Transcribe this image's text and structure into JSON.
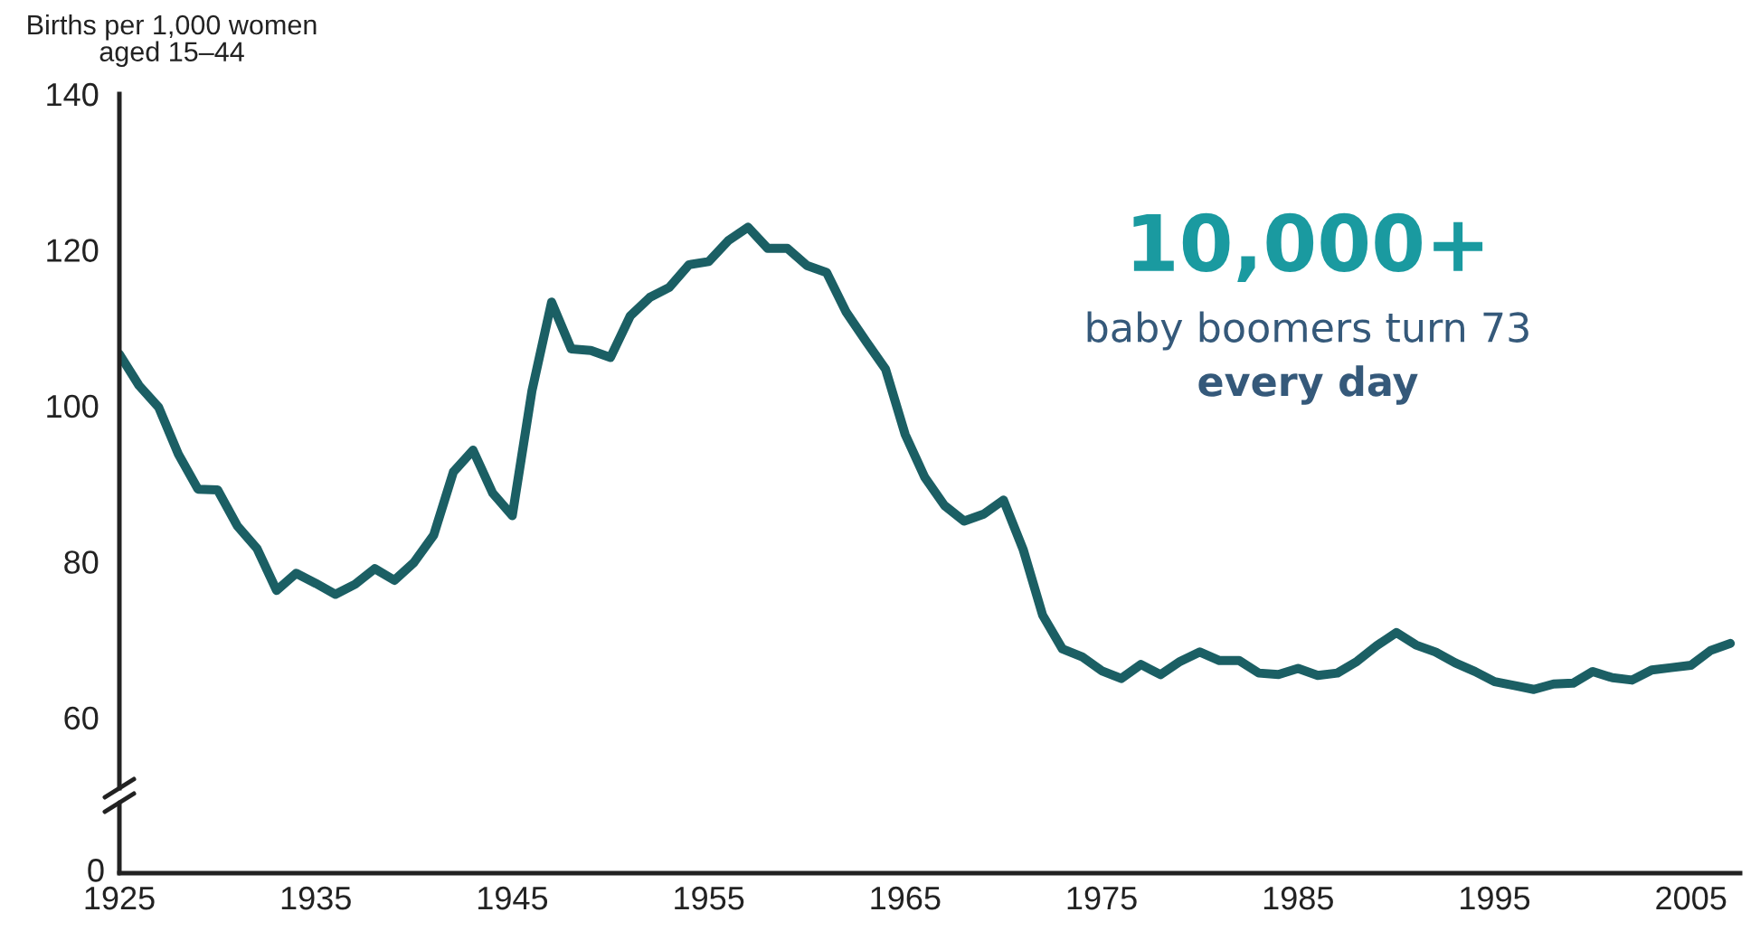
{
  "chart_data": {
    "type": "line",
    "ylabel": "Births per 1,000 women\naged 15–44",
    "annotations": [
      "10,000+",
      "baby boomers turn 73",
      "every day",
      "0"
    ],
    "series": [
      {
        "color": "#1b5f64",
        "x": [
          1925,
          1926,
          1927,
          1928,
          1929,
          1930,
          1931,
          1932,
          1933,
          1934,
          1935,
          1936,
          1937,
          1938,
          1939,
          1940,
          1941,
          1942,
          1943,
          1944,
          1945,
          1946,
          1947,
          1948,
          1949,
          1950,
          1951,
          1952,
          1953,
          1954,
          1955,
          1956,
          1957,
          1958,
          1959,
          1960,
          1961,
          1962,
          1963,
          1964,
          1965,
          1966,
          1967,
          1968,
          1969,
          1970,
          1971,
          1972,
          1973,
          1974,
          1975,
          1976,
          1977,
          1978,
          1979,
          1980,
          1981,
          1982,
          1983,
          1984,
          1985,
          1986,
          1987,
          1988,
          1989,
          1990,
          1991,
          1992,
          1993,
          1994,
          1995,
          1996,
          1997,
          1998,
          1999,
          2000,
          2001,
          2002,
          2003,
          2004,
          2005,
          2006,
          2007
        ],
        "values": [
          106.6,
          102.6,
          99.8,
          93.8,
          89.3,
          89.2,
          84.6,
          81.7,
          76.3,
          78.5,
          77.2,
          75.8,
          77.1,
          79.1,
          77.6,
          79.9,
          83.4,
          91.5,
          94.3,
          88.8,
          85.9,
          101.9,
          113.3,
          107.3,
          107.1,
          106.2,
          111.5,
          113.9,
          115.2,
          118.1,
          118.5,
          121.2,
          122.9,
          120.2,
          120.2,
          118.0,
          117.1,
          112.0,
          108.3,
          104.7,
          96.3,
          90.8,
          87.2,
          85.2,
          86.1,
          87.9,
          81.6,
          73.1,
          68.8,
          67.8,
          66.0,
          65.0,
          66.8,
          65.5,
          67.2,
          68.4,
          67.3,
          67.3,
          65.7,
          65.5,
          66.3,
          65.4,
          65.7,
          67.2,
          69.2,
          70.9,
          69.3,
          68.4,
          67.0,
          65.9,
          64.6,
          64.1,
          63.6,
          64.3,
          64.4,
          65.9,
          65.1,
          64.8,
          66.1,
          66.4,
          66.7,
          68.6,
          69.5
        ]
      }
    ],
    "xlim": [
      1925,
      2007.5
    ],
    "xticks": [
      1925,
      1935,
      1945,
      1955,
      1965,
      1975,
      1985,
      1995,
      2005
    ],
    "ylim": [
      50,
      140
    ],
    "yticks": [
      60,
      80,
      100,
      120,
      140
    ],
    "line_style": "solid"
  }
}
